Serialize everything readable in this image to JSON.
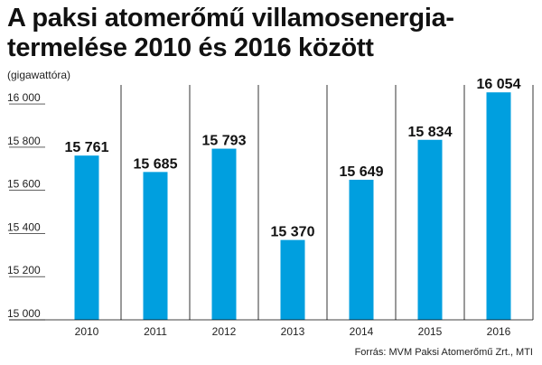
{
  "title_line1": "A paksi atomerőmű villamosenergia-",
  "title_line2": "termelése 2010 és 2016 között",
  "unit_label": "(gigawattóra)",
  "source": "Forrás:  MVM Paksi Atomerőmű Zrt., MTI",
  "colors": {
    "bar": "#009fdf",
    "text": "#111111",
    "grid": "#000000"
  },
  "chart_data": {
    "type": "bar",
    "categories": [
      "2010",
      "2011",
      "2012",
      "2013",
      "2014",
      "2015",
      "2016"
    ],
    "values": [
      15761,
      15685,
      15793,
      15370,
      15649,
      15834,
      16054
    ],
    "value_labels": [
      "15 761",
      "15 685",
      "15 793",
      "15 370",
      "15 649",
      "15 834",
      "16 054"
    ],
    "y_ticks": [
      15000,
      15200,
      15400,
      15600,
      15800,
      16000
    ],
    "y_tick_labels": [
      "15 000",
      "15 200",
      "15 400",
      "15 600",
      "15 800",
      "16 000"
    ],
    "ylim": [
      15000,
      16080
    ],
    "ylabel": "(gigawattóra)",
    "xlabel": "",
    "grid": "vertical separators between categories"
  }
}
